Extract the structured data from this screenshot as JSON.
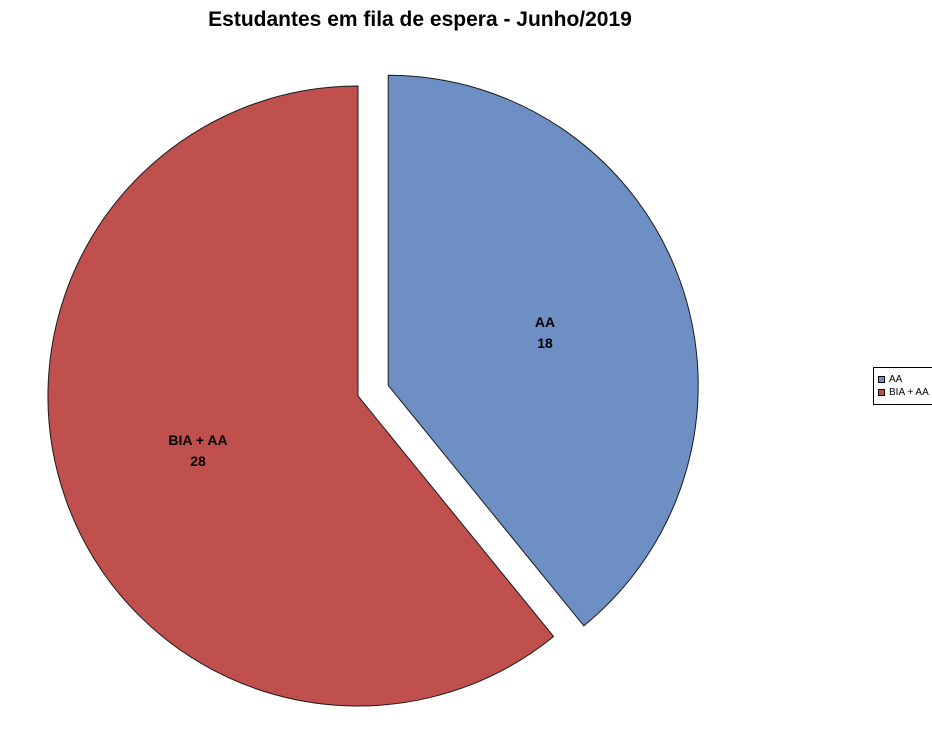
{
  "title": "Estudantes em fila de espera - Junho/2019",
  "chart_data": {
    "type": "pie",
    "title": "Estudantes em fila de espera - Junho/2019",
    "total": 46,
    "start_angle_deg": 0,
    "direction": "clockwise",
    "legend_position": "right",
    "slices": [
      {
        "label": "AA",
        "value": 18,
        "color": "#6D8FC4",
        "exploded": true
      },
      {
        "label": "BIA + AA",
        "value": 28,
        "color": "#C0504D",
        "exploded": false
      }
    ]
  },
  "legend": {
    "items": [
      {
        "label": "AA",
        "color": "#6D8FC4"
      },
      {
        "label": "BIA + AA",
        "color": "#C0504D"
      }
    ]
  },
  "style": {
    "slice_stroke": "#1a1a1a",
    "background": "#ffffff"
  }
}
